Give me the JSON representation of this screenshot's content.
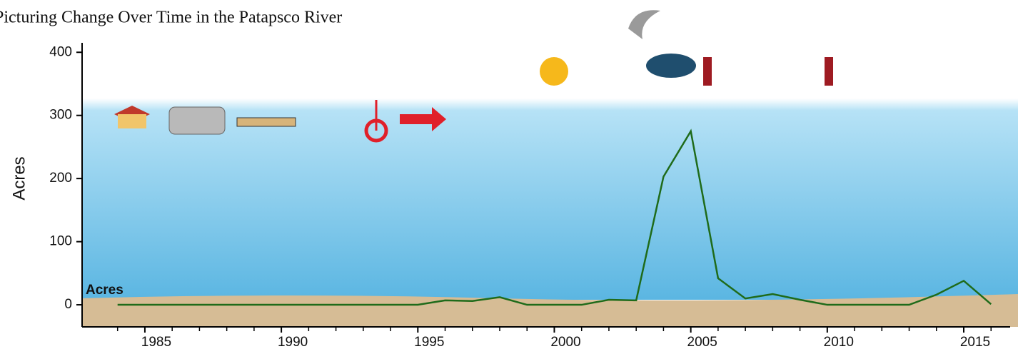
{
  "chart_data": {
    "type": "line",
    "title": "Picturing Change Over Time in the Patapsco River",
    "y_label": "Acres",
    "x": [
      1984,
      1985,
      1986,
      1987,
      1988,
      1989,
      1990,
      1991,
      1992,
      1993,
      1994,
      1995,
      1996,
      1997,
      1998,
      1999,
      2000,
      2001,
      2002,
      2003,
      2004,
      2005,
      2006,
      2007,
      2008,
      2009,
      2010,
      2011,
      2012,
      2013,
      2014,
      2015,
      2016
    ],
    "series": [
      {
        "name": "Acres",
        "color": "#1f6b1a",
        "values": [
          0,
          0,
          0,
          0,
          0,
          0,
          0,
          0,
          0,
          0,
          0,
          0,
          7,
          6,
          12,
          0,
          0,
          0,
          8,
          7,
          203,
          275,
          42,
          10,
          17,
          8,
          0,
          0,
          0,
          0,
          16,
          38,
          1
        ]
      }
    ],
    "xlim": [
      1982.7,
      2016.7
    ],
    "ylim": [
      -35,
      415
    ],
    "xticks": [
      1985,
      1990,
      1995,
      2000,
      2005,
      2010,
      2015
    ],
    "xticks_minor": [
      1984,
      1986,
      1987,
      1988,
      1989,
      1991,
      1992,
      1993,
      1994,
      1996,
      1997,
      1998,
      1999,
      2001,
      2002,
      2003,
      2004,
      2006,
      2007,
      2008,
      2009,
      2011,
      2012,
      2013,
      2014,
      2016
    ],
    "yticks": [
      0,
      100,
      200,
      300,
      400
    ]
  }
}
